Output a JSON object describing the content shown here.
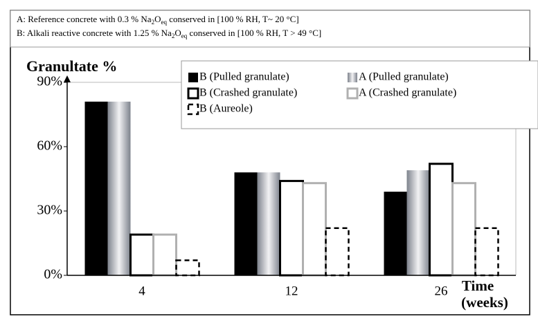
{
  "chart_data": {
    "type": "bar",
    "annotations": [
      [
        {
          "text": "A: Reference concrete with 0.3 % Na"
        },
        {
          "text": "2",
          "sub": true
        },
        {
          "text": "O"
        },
        {
          "text": "eq",
          "sub": true
        },
        {
          "text": " conserved in [100 % RH, T~ 20 °C]"
        }
      ],
      [
        {
          "text": "B: Alkali reactive concrete with 1.25 % Na"
        },
        {
          "text": "2",
          "sub": true
        },
        {
          "text": "O"
        },
        {
          "text": "eq",
          "sub": true
        },
        {
          "text": " conserved in [100 % RH, T > 49 °C]"
        }
      ]
    ],
    "ylabel": "Granultate %",
    "xlabel": [
      "Time",
      "(weeks)"
    ],
    "categories": [
      "4",
      "12",
      "26"
    ],
    "series": [
      {
        "name": "B (Pulled granulate)",
        "color": "#000000",
        "pattern": "solid",
        "values": [
          81,
          48,
          39
        ]
      },
      {
        "name": "A (Pulled granulate)",
        "color": "#8c9099",
        "pattern": "gradient",
        "values": [
          81,
          48,
          49
        ]
      },
      {
        "name": "B (Crashed granulate)",
        "color": "#000000",
        "pattern": "outline",
        "values": [
          19,
          44,
          52
        ]
      },
      {
        "name": "A (Crashed granulate)",
        "color": "#b0b0b0",
        "pattern": "outline",
        "values": [
          19,
          43,
          43
        ]
      },
      {
        "name": "B (Aureole)",
        "color": "#000000",
        "pattern": "dashed",
        "values": [
          7,
          22,
          22
        ]
      }
    ],
    "ylim": [
      0,
      90
    ],
    "yticks": [
      {
        "value": 0,
        "label": "0%"
      },
      {
        "value": 30,
        "label": "30%"
      },
      {
        "value": 60,
        "label": "60%"
      },
      {
        "value": 90,
        "label": "90%"
      }
    ]
  }
}
